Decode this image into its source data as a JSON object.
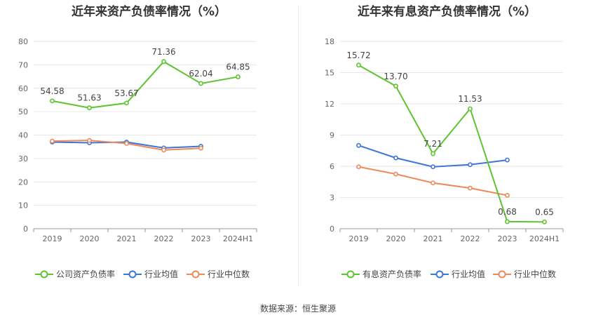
{
  "charts": [
    {
      "id": "left",
      "title": "近年来资产负债率情况（%）",
      "categories": [
        "2019",
        "2020",
        "2021",
        "2022",
        "2023",
        "2024H1"
      ],
      "y_ticks": [
        "0",
        "10",
        "20",
        "30",
        "40",
        "50",
        "60",
        "70",
        "80"
      ],
      "ylim": [
        0,
        80
      ],
      "series": [
        {
          "name": "公司资产负债率",
          "color": "#5cc42e",
          "values": [
            54.58,
            51.63,
            53.67,
            71.36,
            62.04,
            64.85
          ],
          "labels": [
            "54.58",
            "51.63",
            "53.67",
            "71.36",
            "62.04",
            "64.85"
          ]
        },
        {
          "name": "行业均值",
          "color": "#3f74d8",
          "values": [
            37.0,
            36.7,
            37.0,
            34.5,
            35.2,
            null
          ],
          "labels": []
        },
        {
          "name": "行业中位数",
          "color": "#ee8a5a",
          "values": [
            37.4,
            37.7,
            36.4,
            33.6,
            34.4,
            null
          ],
          "labels": []
        }
      ]
    },
    {
      "id": "right",
      "title": "近年来有息资产负债率情况（%）",
      "categories": [
        "2019",
        "2020",
        "2021",
        "2022",
        "2023",
        "2024H1"
      ],
      "y_ticks": [
        "0",
        "3",
        "6",
        "9",
        "12",
        "15",
        "18"
      ],
      "ylim": [
        0,
        18
      ],
      "series": [
        {
          "name": "有息资产负债率",
          "color": "#5cc42e",
          "values": [
            15.72,
            13.7,
            7.21,
            11.53,
            0.68,
            0.65
          ],
          "labels": [
            "15.72",
            "13.70",
            "7.21",
            "11.53",
            "0.68",
            "0.65"
          ]
        },
        {
          "name": "行业均值",
          "color": "#3f74d8",
          "values": [
            8.0,
            6.8,
            5.95,
            6.15,
            6.6,
            null
          ],
          "labels": []
        },
        {
          "name": "行业中位数",
          "color": "#ee8a5a",
          "values": [
            5.95,
            5.25,
            4.4,
            3.9,
            3.2,
            null
          ],
          "labels": []
        }
      ]
    }
  ],
  "source": "数据来源：恒生聚源"
}
